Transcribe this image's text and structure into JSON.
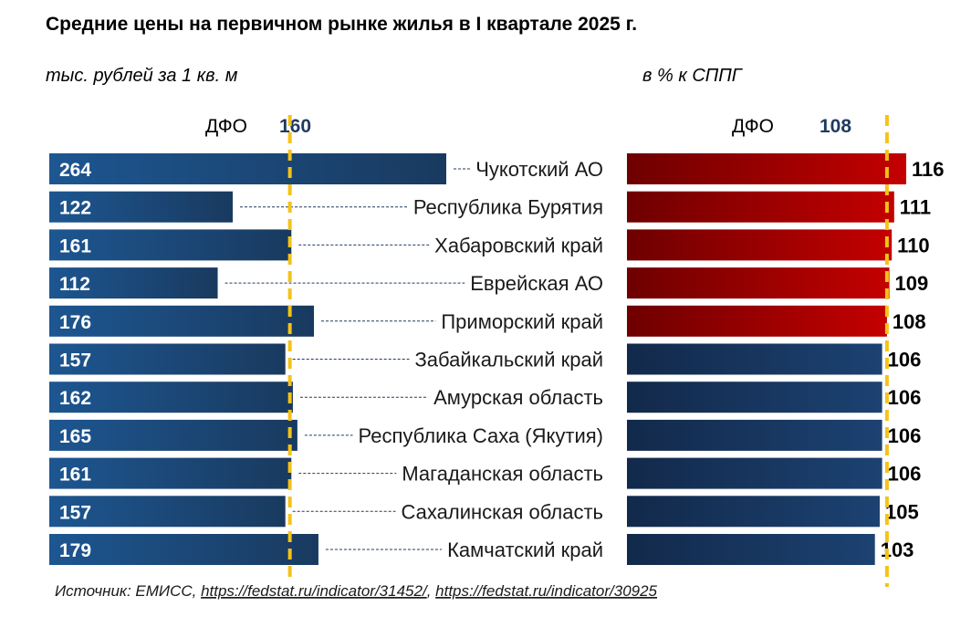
{
  "chart_data": [
    {
      "type": "bar",
      "orientation": "horizontal",
      "title": "Средние цены на первичном рынке жилья в I квартале 2025 г.",
      "subtitle": "тыс. рублей за 1 кв. м",
      "reference": {
        "label": "ДФО",
        "value": 160
      },
      "categories": [
        "Чукотский АО",
        "Республика Бурятия",
        "Хабаровский край",
        "Еврейская АО",
        "Приморский край",
        "Забайкальский край",
        "Амурская область",
        "Республика Саха (Якутия)",
        "Магаданская область",
        "Сахалинская область",
        "Камчатский край"
      ],
      "values": [
        264,
        122,
        161,
        112,
        176,
        157,
        162,
        165,
        161,
        157,
        179
      ],
      "colors": {
        "bar": "#1d4e80",
        "reference": "#f5c218"
      }
    },
    {
      "type": "bar",
      "orientation": "horizontal",
      "subtitle": "в % к СППГ",
      "reference": {
        "label": "ДФО",
        "value": 108
      },
      "categories": [
        "Чукотский АО",
        "Республика Бурятия",
        "Хабаровский край",
        "Еврейская АО",
        "Приморский край",
        "Забайкальский край",
        "Амурская область",
        "Республика Саха (Якутия)",
        "Магаданская область",
        "Сахалинская область",
        "Камчатский край"
      ],
      "values": [
        116,
        111,
        110,
        109,
        108,
        106,
        106,
        106,
        106,
        105,
        103
      ],
      "colors": {
        "above_or_equal_reference": "#b30000",
        "below_reference": "#1a3c64",
        "reference": "#f5c218"
      }
    }
  ],
  "source": {
    "prefix": "Источник: ЕМИСС, ",
    "link1": "https://fedstat.ru/indicator/31452/",
    "separator": ",  ",
    "link2": "https://fedstat.ru/indicator/30925"
  }
}
